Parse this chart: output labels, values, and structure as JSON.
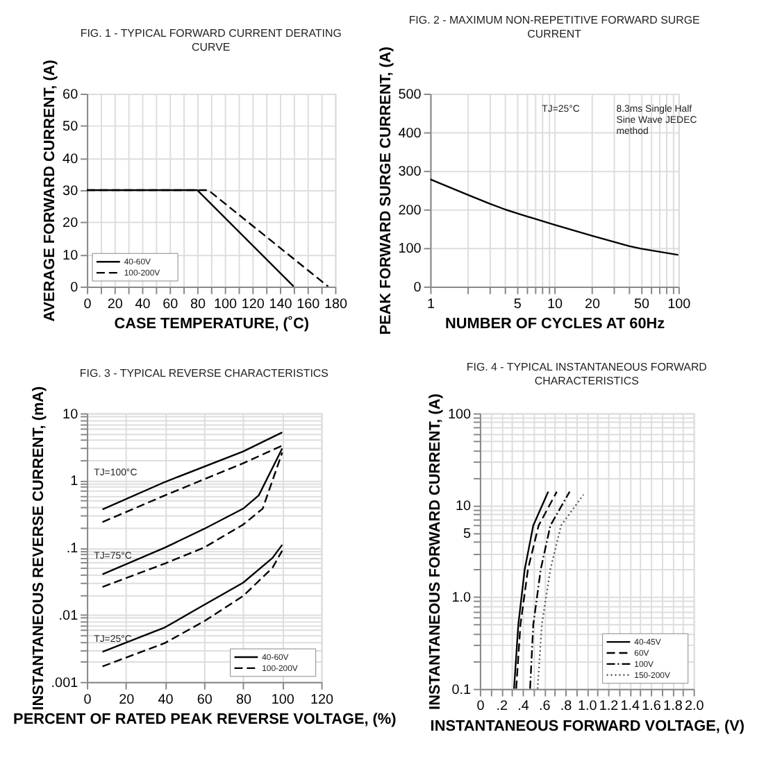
{
  "chart_data": [
    {
      "type": "line",
      "title": "FIG. 1 - TYPICAL FORWARD CURRENT DERATING CURVE",
      "xlabel": "CASE TEMPERATURE, (˚C)",
      "ylabel": "AVERAGE FORWARD CURRENT, (A)",
      "xlim": [
        0,
        180
      ],
      "ylim": [
        0,
        60
      ],
      "xticks": [
        0,
        {
          "value": 10,
          "label": null
        },
        20,
        {
          "value": 30,
          "label": null
        },
        40,
        {
          "value": 50,
          "label": null
        },
        60,
        {
          "value": 70,
          "label": null
        },
        80,
        {
          "value": 90,
          "label": null
        },
        100,
        {
          "value": 110,
          "label": null
        },
        120,
        {
          "value": 130,
          "label": null
        },
        140,
        {
          "value": 150,
          "label": null
        },
        160,
        {
          "value": 170,
          "label": null
        },
        180
      ],
      "yticks": [
        0,
        10,
        20,
        30,
        40,
        50,
        60
      ],
      "grid": true,
      "legend": "bottom left",
      "series": [
        {
          "name": "40-60V",
          "color": "#000000",
          "line_style": "solid",
          "x": [
            0,
            80,
            150
          ],
          "values": [
            30,
            30,
            0
          ]
        },
        {
          "name": "100-200V",
          "color": "#000000",
          "line_style": "dashed",
          "x": [
            0,
            88,
            175
          ],
          "values": [
            30,
            30,
            0
          ]
        }
      ]
    },
    {
      "type": "line",
      "title": "FIG. 2 - MAXIMUM NON-REPETITIVE FORWARD SURGE CURRENT",
      "xlabel": "NUMBER OF CYCLES AT 60Hz",
      "ylabel": "PEAK FORWARD SURGE CURRENT, (A)",
      "log": "x",
      "xlim": [
        1,
        100
      ],
      "ylim": [
        0,
        500
      ],
      "xticks": [
        1,
        {
          "value": 2,
          "label": null
        },
        {
          "value": 3,
          "label": null
        },
        {
          "value": 4,
          "label": null
        },
        5,
        {
          "value": 6,
          "label": null
        },
        {
          "value": 7,
          "label": null
        },
        {
          "value": 8,
          "label": null
        },
        {
          "value": 9,
          "label": null
        },
        10,
        20,
        {
          "value": 30,
          "label": null
        },
        {
          "value": 40,
          "label": null
        },
        50,
        {
          "value": 60,
          "label": null
        },
        {
          "value": 70,
          "label": null
        },
        {
          "value": 80,
          "label": null
        },
        {
          "value": 90,
          "label": null
        },
        100
      ],
      "yticks": [
        0,
        100,
        200,
        300,
        400,
        500
      ],
      "grid": true,
      "legend": false,
      "annotations": [
        "TJ=25°C",
        "8.3ms Single Half Sine Wave JEDEC method"
      ],
      "series": [
        {
          "color": "#000000",
          "line_style": "solid",
          "x": [
            1,
            2,
            3,
            4,
            5,
            10,
            20,
            40,
            50,
            100
          ],
          "values": [
            278,
            238,
            215,
            200,
            190,
            160,
            132,
            105,
            98,
            82
          ]
        }
      ]
    },
    {
      "type": "line",
      "title": "FIG. 3 - TYPICAL REVERSE CHARACTERISTICS",
      "xlabel": "PERCENT OF RATED PEAK REVERSE VOLTAGE, (%)",
      "ylabel": "INSTANTANEOUS REVERSE CURRENT, (mA)",
      "log": "y",
      "xlim": [
        0,
        120
      ],
      "ylim": [
        0.001,
        10
      ],
      "xticks": [
        0,
        20,
        40,
        60,
        80,
        100,
        120
      ],
      "yticks": [
        {
          "value": 0.001,
          "label": ".001"
        },
        {
          "value": 0.002,
          "label": null
        },
        {
          "value": 0.003,
          "label": null
        },
        {
          "value": 0.004,
          "label": null
        },
        {
          "value": 0.005,
          "label": null
        },
        {
          "value": 0.006,
          "label": null
        },
        {
          "value": 0.007,
          "label": null
        },
        {
          "value": 0.008,
          "label": null
        },
        {
          "value": 0.009,
          "label": null
        },
        {
          "value": 0.01,
          "label": ".01"
        },
        {
          "value": 0.02,
          "label": null
        },
        {
          "value": 0.03,
          "label": null
        },
        {
          "value": 0.04,
          "label": null
        },
        {
          "value": 0.05,
          "label": null
        },
        {
          "value": 0.06,
          "label": null
        },
        {
          "value": 0.07,
          "label": null
        },
        {
          "value": 0.08,
          "label": null
        },
        {
          "value": 0.09,
          "label": null
        },
        {
          "value": 0.1,
          "label": ".1"
        },
        {
          "value": 0.2,
          "label": null
        },
        {
          "value": 0.3,
          "label": null
        },
        {
          "value": 0.4,
          "label": null
        },
        {
          "value": 0.5,
          "label": null
        },
        {
          "value": 0.6,
          "label": null
        },
        {
          "value": 0.7,
          "label": null
        },
        {
          "value": 0.8,
          "label": null
        },
        {
          "value": 0.9,
          "label": null
        },
        1,
        {
          "value": 2,
          "label": null
        },
        {
          "value": 3,
          "label": null
        },
        {
          "value": 4,
          "label": null
        },
        {
          "value": 5,
          "label": null
        },
        {
          "value": 6,
          "label": null
        },
        {
          "value": 7,
          "label": null
        },
        {
          "value": 8,
          "label": null
        },
        {
          "value": 9,
          "label": null
        },
        10
      ],
      "grid": true,
      "legend": "bottom right",
      "annotations": [
        "TJ=100°C",
        "TJ=75°C",
        "TJ=25°C"
      ],
      "series": [
        {
          "name": "40-60V",
          "color": "#000000",
          "line_style": "solid",
          "x": [
            8,
            40,
            80,
            100
          ],
          "values": [
            0.37,
            0.95,
            2.7,
            5.2
          ]
        },
        {
          "name": "100-200V",
          "color": "#000000",
          "line_style": "dashed",
          "x": [
            8,
            40,
            80,
            100
          ],
          "values": [
            0.24,
            0.6,
            1.8,
            3.3
          ]
        },
        {
          "color": "#000000",
          "line_style": "solid",
          "x": [
            8,
            40,
            60,
            80,
            88,
            100
          ],
          "values": [
            0.04,
            0.1,
            0.19,
            0.38,
            0.6,
            3.0
          ]
        },
        {
          "color": "#000000",
          "line_style": "dashed",
          "x": [
            8,
            40,
            60,
            80,
            90,
            100
          ],
          "values": [
            0.026,
            0.058,
            0.1,
            0.22,
            0.38,
            2.6
          ]
        },
        {
          "color": "#000000",
          "line_style": "solid",
          "x": [
            8,
            40,
            60,
            80,
            95,
            100
          ],
          "values": [
            0.0028,
            0.0065,
            0.014,
            0.03,
            0.07,
            0.11
          ]
        },
        {
          "color": "#000000",
          "line_style": "dashed",
          "x": [
            8,
            40,
            60,
            80,
            95,
            100
          ],
          "values": [
            0.0017,
            0.0038,
            0.008,
            0.019,
            0.05,
            0.09
          ]
        }
      ]
    },
    {
      "type": "line",
      "title": "FIG. 4 - TYPICAL INSTANTANEOUS FORWARD CHARACTERISTICS",
      "xlabel": "INSTANTANEOUS FORWARD VOLTAGE, (V)",
      "ylabel": "INSTANTANEOUS FORWARD CURRENT, (A)",
      "log": "y",
      "xlim": [
        0,
        2.0
      ],
      "ylim": [
        0.1,
        100
      ],
      "xticks": [
        0,
        {
          "value": 0.1,
          "label": null
        },
        {
          "value": 0.2,
          "label": ".2"
        },
        {
          "value": 0.3,
          "label": null
        },
        {
          "value": 0.4,
          "label": ".4"
        },
        {
          "value": 0.5,
          "label": null
        },
        {
          "value": 0.6,
          "label": ".6"
        },
        {
          "value": 0.7,
          "label": null
        },
        {
          "value": 0.8,
          "label": ".8"
        },
        {
          "value": 0.9,
          "label": null
        },
        {
          "value": 1.0,
          "label": "1.0"
        },
        {
          "value": 1.1,
          "label": null
        },
        {
          "value": 1.2,
          "label": "1.2"
        },
        {
          "value": 1.3,
          "label": null
        },
        {
          "value": 1.4,
          "label": "1.4"
        },
        {
          "value": 1.5,
          "label": null
        },
        {
          "value": 1.6,
          "label": "1.6"
        },
        {
          "value": 1.7,
          "label": null
        },
        {
          "value": 1.8,
          "label": "1.8"
        },
        {
          "value": 1.9,
          "label": null
        },
        {
          "value": 2.0,
          "label": "2.0"
        }
      ],
      "yticks": [
        0.1,
        {
          "value": 0.2,
          "label": null
        },
        {
          "value": 0.3,
          "label": null
        },
        {
          "value": 0.4,
          "label": null
        },
        {
          "value": 0.5,
          "label": null
        },
        {
          "value": 0.6,
          "label": null
        },
        {
          "value": 0.7,
          "label": null
        },
        {
          "value": 0.8,
          "label": null
        },
        {
          "value": 0.9,
          "label": null
        },
        {
          "value": 1,
          "label": "1.0"
        },
        {
          "value": 2,
          "label": null
        },
        {
          "value": 3,
          "label": null
        },
        {
          "value": 4,
          "label": null
        },
        5,
        {
          "value": 6,
          "label": null
        },
        {
          "value": 7,
          "label": null
        },
        {
          "value": 8,
          "label": null
        },
        {
          "value": 9,
          "label": null
        },
        10,
        {
          "value": 20,
          "label": null
        },
        {
          "value": 30,
          "label": null
        },
        {
          "value": 40,
          "label": null
        },
        {
          "value": 50,
          "label": null
        },
        {
          "value": 60,
          "label": null
        },
        {
          "value": 70,
          "label": null
        },
        {
          "value": 80,
          "label": null
        },
        {
          "value": 90,
          "label": null
        },
        100
      ],
      "grid": true,
      "legend": "bottom right",
      "series": [
        {
          "name": "40-45V",
          "color": "#000000",
          "line_style": "solid",
          "x": [
            0.32,
            0.36,
            0.42,
            0.5,
            0.64
          ],
          "values": [
            0.1,
            0.5,
            2,
            6,
            14
          ]
        },
        {
          "name": "60V",
          "color": "#000000",
          "line_style": "dashed",
          "x": [
            0.34,
            0.38,
            0.45,
            0.55,
            0.72
          ],
          "values": [
            0.1,
            0.5,
            2,
            6,
            14
          ]
        },
        {
          "name": "100V",
          "color": "#000000",
          "line_style": "dashdot",
          "x": [
            0.47,
            0.5,
            0.57,
            0.66,
            0.84
          ],
          "values": [
            0.1,
            0.5,
            2,
            6,
            14
          ]
        },
        {
          "name": "150-200V",
          "color": "#555555",
          "line_style": "dotted",
          "x": [
            0.54,
            0.58,
            0.66,
            0.76,
            0.97
          ],
          "values": [
            0.1,
            0.5,
            2,
            6,
            13
          ]
        }
      ]
    }
  ]
}
